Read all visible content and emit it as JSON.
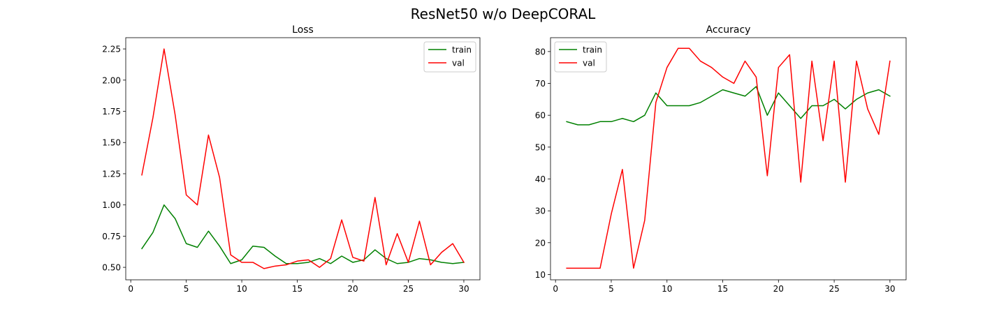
{
  "figure": {
    "title": "ResNet50 w/o DeepCORAL"
  },
  "chart_data": [
    {
      "type": "line",
      "title": "Loss",
      "xlabel": "",
      "ylabel": "",
      "x": [
        1,
        2,
        3,
        4,
        5,
        6,
        7,
        8,
        9,
        10,
        11,
        12,
        13,
        14,
        15,
        16,
        17,
        18,
        19,
        20,
        21,
        22,
        23,
        24,
        25,
        26,
        27,
        28,
        29,
        30
      ],
      "xlim": [
        -0.45,
        31.45
      ],
      "ylim": [
        0.4,
        2.34
      ],
      "xticks": [
        0,
        5,
        10,
        15,
        20,
        25,
        30
      ],
      "xtick_labels": [
        "0",
        "5",
        "10",
        "15",
        "20",
        "25",
        "30"
      ],
      "yticks": [
        0.5,
        0.75,
        1.0,
        1.25,
        1.5,
        1.75,
        2.0,
        2.25
      ],
      "ytick_labels": [
        "0.50",
        "0.75",
        "1.00",
        "1.25",
        "1.50",
        "1.75",
        "2.00",
        "2.25"
      ],
      "grid": false,
      "legend_position": "upper right",
      "series": [
        {
          "name": "train",
          "color": "#008000",
          "values": [
            0.65,
            0.78,
            1.0,
            0.89,
            0.69,
            0.66,
            0.79,
            0.67,
            0.53,
            0.56,
            0.67,
            0.66,
            0.59,
            0.53,
            0.53,
            0.54,
            0.57,
            0.53,
            0.59,
            0.54,
            0.56,
            0.64,
            0.57,
            0.53,
            0.54,
            0.57,
            0.56,
            0.54,
            0.53,
            0.54
          ]
        },
        {
          "name": "val",
          "color": "#ff0000",
          "values": [
            1.24,
            1.7,
            2.25,
            1.72,
            1.08,
            1.0,
            1.56,
            1.22,
            0.6,
            0.54,
            0.54,
            0.49,
            0.51,
            0.52,
            0.55,
            0.56,
            0.5,
            0.57,
            0.88,
            0.58,
            0.55,
            1.06,
            0.52,
            0.77,
            0.54,
            0.87,
            0.52,
            0.62,
            0.69,
            0.54
          ]
        }
      ]
    },
    {
      "type": "line",
      "title": "Accuracy",
      "xlabel": "",
      "ylabel": "",
      "x": [
        1,
        2,
        3,
        4,
        5,
        6,
        7,
        8,
        9,
        10,
        11,
        12,
        13,
        14,
        15,
        16,
        17,
        18,
        19,
        20,
        21,
        22,
        23,
        24,
        25,
        26,
        27,
        28,
        29,
        30
      ],
      "xlim": [
        -0.45,
        31.45
      ],
      "ylim": [
        8.35,
        84.35
      ],
      "xticks": [
        0,
        5,
        10,
        15,
        20,
        25,
        30
      ],
      "xtick_labels": [
        "0",
        "5",
        "10",
        "15",
        "20",
        "25",
        "30"
      ],
      "yticks": [
        10,
        20,
        30,
        40,
        50,
        60,
        70,
        80
      ],
      "ytick_labels": [
        "10",
        "20",
        "30",
        "40",
        "50",
        "60",
        "70",
        "80"
      ],
      "grid": false,
      "legend_position": "upper left",
      "series": [
        {
          "name": "train",
          "color": "#008000",
          "values": [
            58,
            57,
            57,
            58,
            58,
            59,
            58,
            60,
            67,
            63,
            63,
            63,
            64,
            66,
            68,
            67,
            66,
            69,
            60,
            67,
            63,
            59,
            63,
            63,
            65,
            62,
            65,
            67,
            68,
            66
          ]
        },
        {
          "name": "val",
          "color": "#ff0000",
          "values": [
            12,
            12,
            12,
            12,
            29,
            43,
            12,
            27,
            64,
            75,
            81,
            81,
            77,
            75,
            72,
            70,
            77,
            72,
            41,
            75,
            79,
            39,
            77,
            52,
            77,
            39,
            77,
            62,
            54,
            77
          ]
        }
      ]
    }
  ]
}
